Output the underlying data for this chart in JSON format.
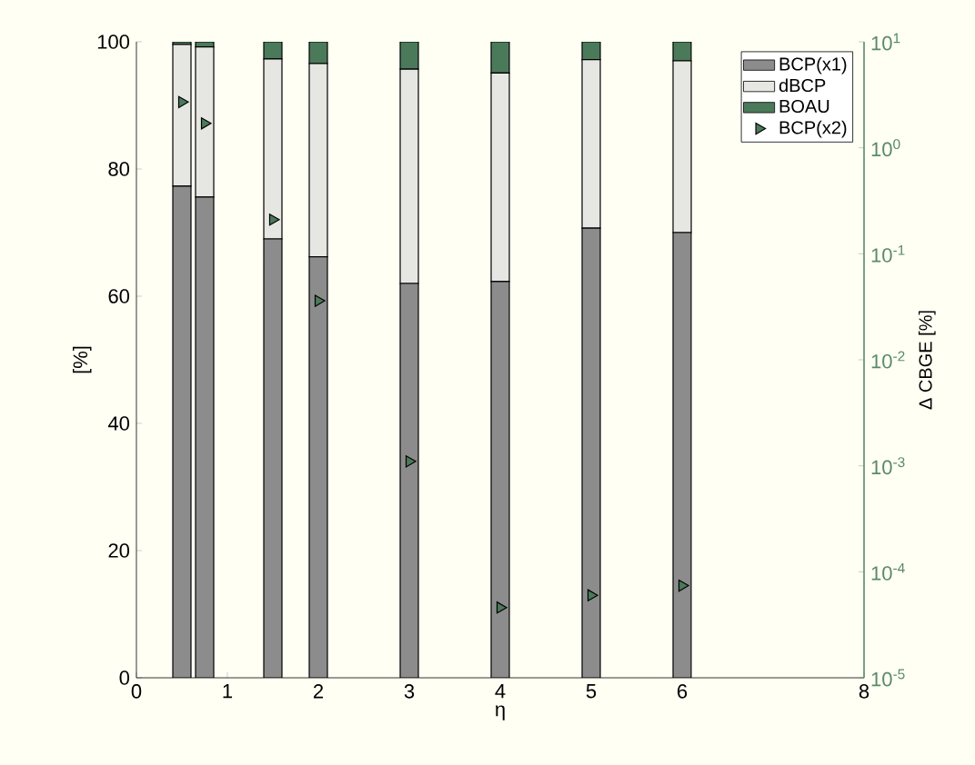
{
  "chart_data": {
    "type": "bar",
    "stacked": true,
    "xlabel": "η",
    "ylabel": "[%]",
    "y2label": "Δ CBGE [%]",
    "x": [
      0.5,
      0.75,
      1.5,
      2,
      3,
      4,
      5,
      6
    ],
    "xlim": [
      0,
      8
    ],
    "xticks": [
      0,
      1,
      2,
      3,
      4,
      5,
      6,
      8
    ],
    "ylim": [
      0,
      100
    ],
    "yticks": [
      0,
      20,
      40,
      60,
      80,
      100
    ],
    "y2lim": [
      1e-05,
      10
    ],
    "y2ticks": [
      {
        "value": 1e-05,
        "label": "10$^{-5}$"
      },
      {
        "value": 0.0001,
        "label": "10$^{-4}$"
      },
      {
        "value": 0.001,
        "label": "10$^{-3}$"
      },
      {
        "value": 0.01,
        "label": "10$^{-2}$"
      },
      {
        "value": 0.1,
        "label": "10$^{-1}$"
      },
      {
        "value": 1,
        "label": "10$^{0}$"
      },
      {
        "value": 10,
        "label": "10$^{1}$"
      }
    ],
    "log": "y2",
    "legend": "top right",
    "series": [
      {
        "name": "BCP(x1)",
        "color": "#8c8c8c",
        "values": [
          77.3,
          75.6,
          69,
          66.2,
          62,
          62.3,
          70.7,
          70
        ]
      },
      {
        "name": "dBCP",
        "color": "#e6e6e3",
        "values": [
          22.3,
          23.6,
          28.3,
          30.4,
          33.7,
          32.8,
          26.5,
          27
        ]
      },
      {
        "name": "BOAU",
        "color": "#4b7a5a",
        "values": [
          0.4,
          0.8,
          2.7,
          3.4,
          4.3,
          4.9,
          2.8,
          3
        ]
      },
      {
        "name": "BCP(x2)",
        "type": "scatter",
        "axis": "y2",
        "marker": "triangle",
        "color": "#4b7a5a",
        "values": [
          2.7,
          1.7,
          0.21,
          0.036,
          0.0011,
          4.6e-05,
          6e-05,
          7.4e-05
        ]
      }
    ]
  }
}
